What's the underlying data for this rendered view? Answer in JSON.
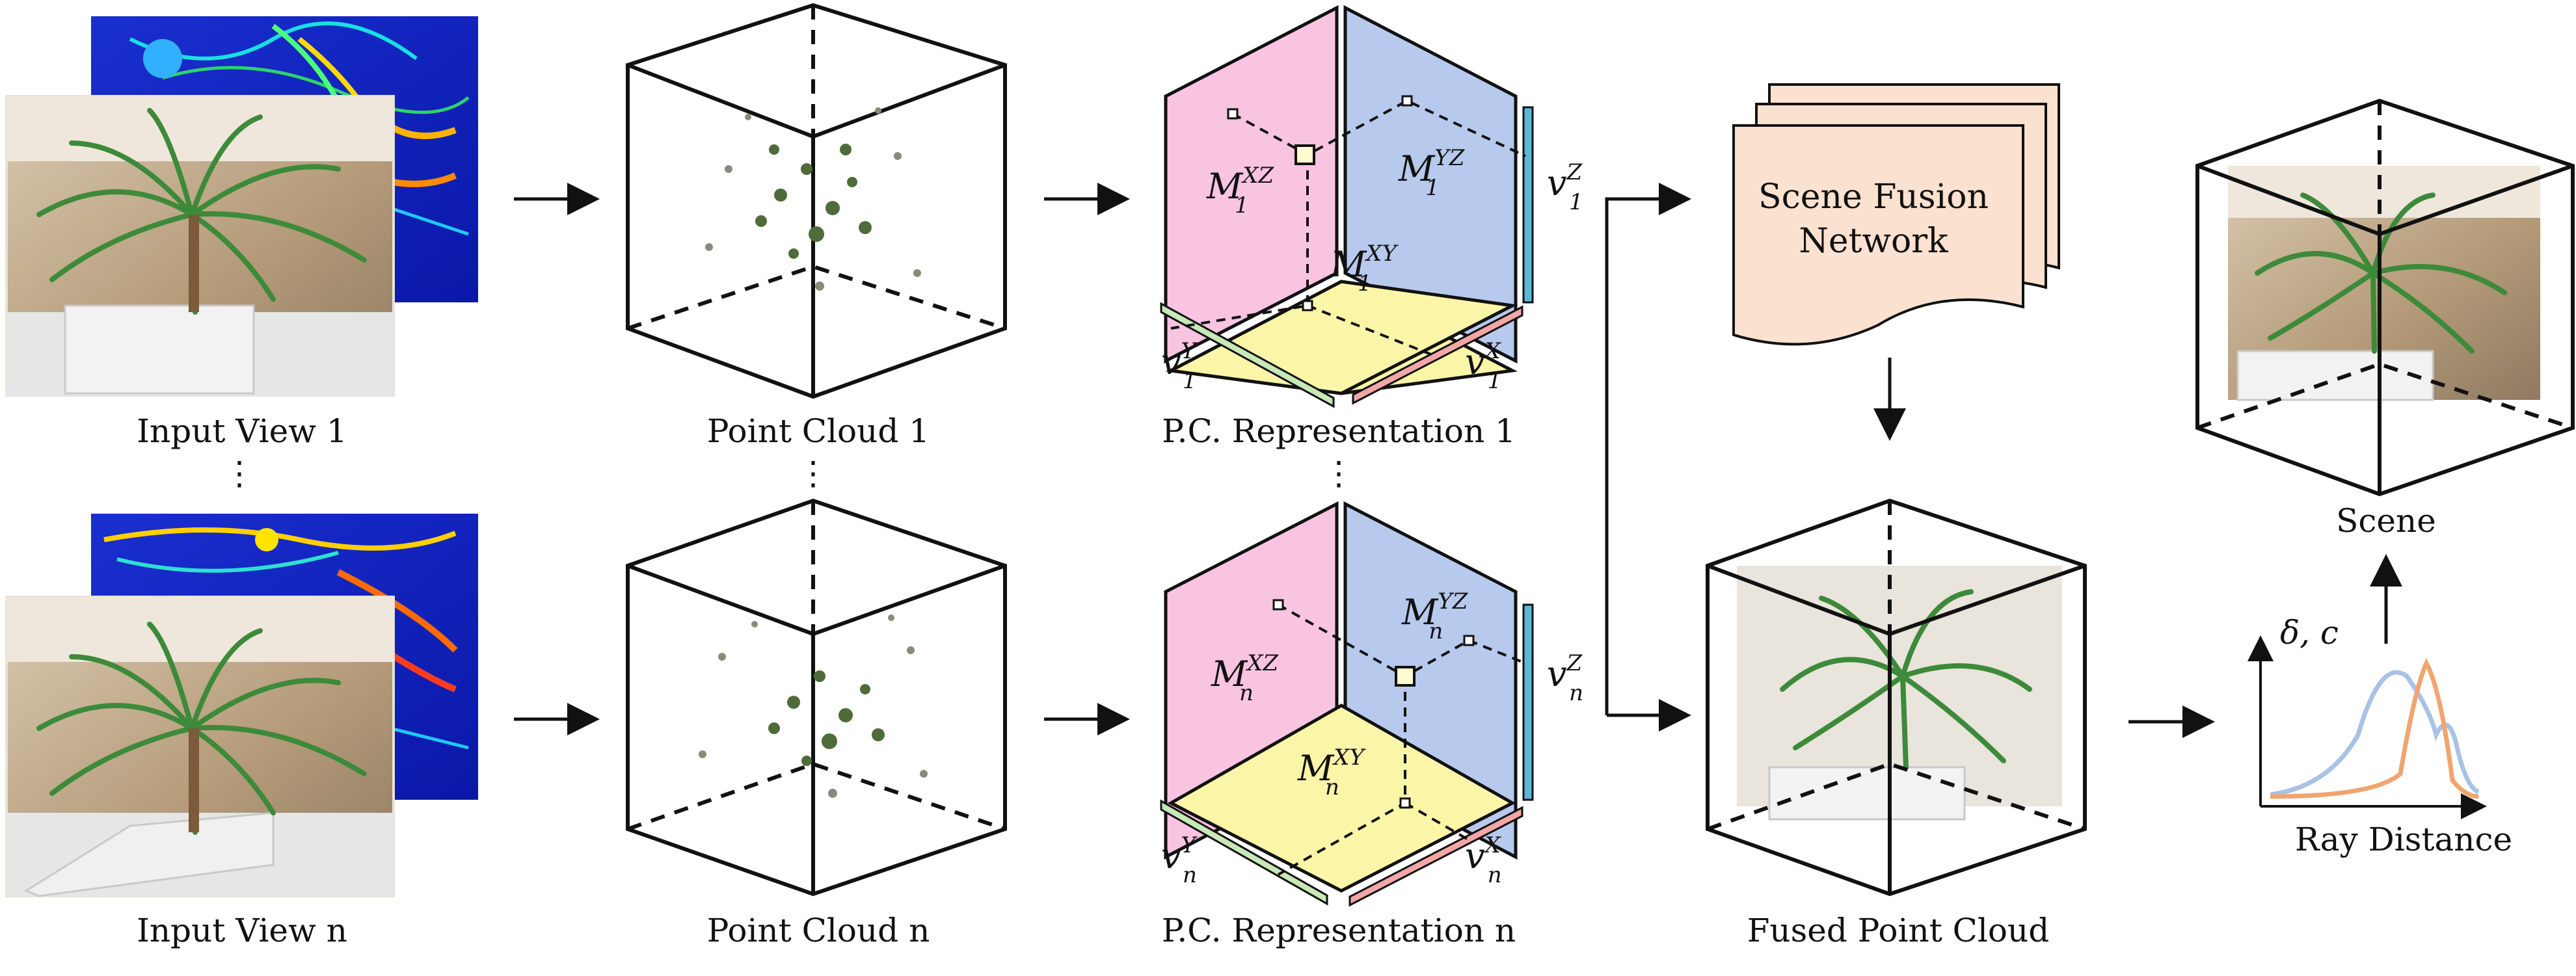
{
  "captions": {
    "input_view_1": "Input View 1",
    "input_view_n": "Input View n",
    "point_cloud_1": "Point Cloud 1",
    "point_cloud_n": "Point Cloud n",
    "pc_rep_1": "P.C. Representation 1",
    "pc_rep_n": "P.C. Representation n",
    "fused": "Fused Point Cloud",
    "scene": "Scene",
    "ray_distance": "Ray Distance",
    "ellipsis": "⋮"
  },
  "fusion_box": {
    "line1": "Scene Fusion",
    "line2": "Network"
  },
  "planes": {
    "row1": {
      "xz": "M",
      "xz_sup": "XZ",
      "xz_sub": "1",
      "yz": "M",
      "yz_sup": "YZ",
      "yz_sub": "1",
      "xy": "M",
      "xy_sup": "XY",
      "xy_sub": "1",
      "vz": "v",
      "vz_sup": "Z",
      "vz_sub": "1",
      "vy": "v",
      "vy_sup": "Y",
      "vy_sub": "1",
      "vx": "v",
      "vx_sup": "X",
      "vx_sub": "1"
    },
    "rown": {
      "xz": "M",
      "xz_sup": "XZ",
      "xz_sub": "n",
      "yz": "M",
      "yz_sup": "YZ",
      "yz_sub": "n",
      "xy": "M",
      "xy_sup": "XY",
      "xy_sub": "n",
      "vz": "v",
      "vz_sup": "Z",
      "vz_sub": "n",
      "vy": "v",
      "vy_sup": "Y",
      "vy_sub": "n",
      "vx": "v",
      "vx_sup": "X",
      "vx_sub": "n"
    }
  },
  "ray_plot": {
    "ylabel": "δ, c"
  },
  "colors": {
    "xz_plane": "#f8c4e0",
    "yz_plane": "#b7c9ec",
    "xy_plane": "#fbf5a8",
    "vz_bar": "#5bb8d6",
    "vy_bar": "#c8e8b8",
    "vx_bar": "#f4a6a6",
    "fusion_box": "#fbe1cf",
    "curve_blue": "#a9c1e6",
    "curve_orange": "#f0a56f"
  }
}
